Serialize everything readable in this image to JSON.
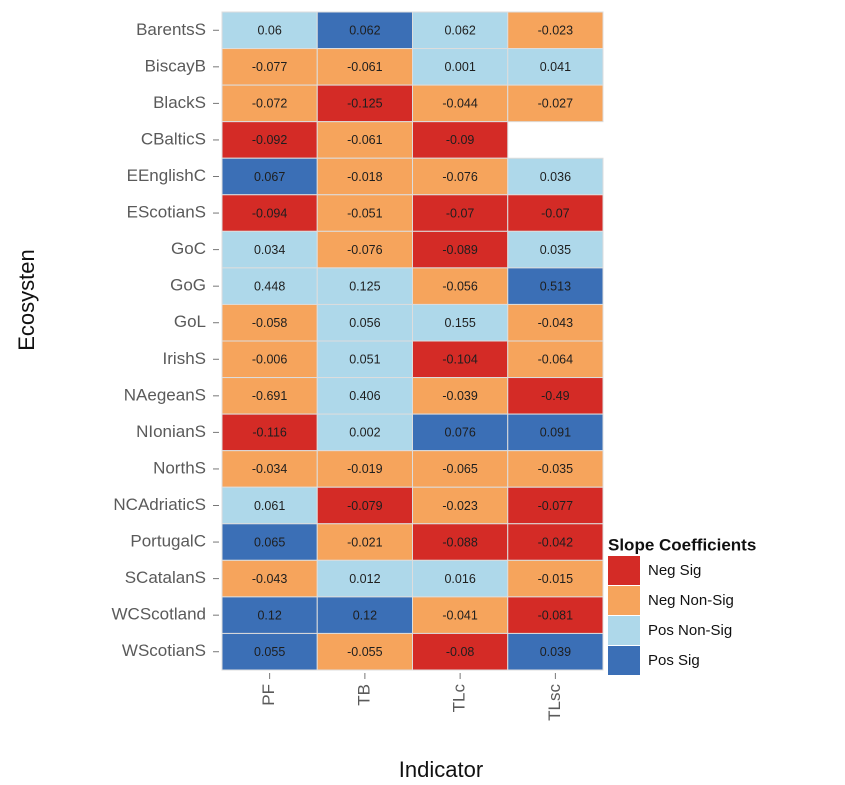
{
  "chart_data": {
    "type": "heatmap",
    "x_label": "Indicator",
    "y_label": "Ecosysten",
    "x_categories": [
      "PF",
      "TB",
      "TLc",
      "TLsc"
    ],
    "y_categories": [
      "BarentsS",
      "BiscayB",
      "BlackS",
      "CBalticS",
      "EEnglishC",
      "EScotianS",
      "GoC",
      "GoG",
      "GoL",
      "IrishS",
      "NAegeanS",
      "NIonianS",
      "NorthS",
      "NCAdriaticS",
      "PortugalC",
      "SCatalanS",
      "WCScotland",
      "WScotianS"
    ],
    "values": [
      [
        0.06,
        0.062,
        0.062,
        -0.023
      ],
      [
        -0.077,
        -0.061,
        0.001,
        0.041
      ],
      [
        -0.072,
        -0.125,
        -0.044,
        -0.027
      ],
      [
        -0.092,
        -0.061,
        -0.09,
        null
      ],
      [
        0.067,
        -0.018,
        -0.076,
        0.036
      ],
      [
        -0.094,
        -0.051,
        -0.07,
        -0.07
      ],
      [
        0.034,
        -0.076,
        -0.089,
        0.035
      ],
      [
        0.448,
        0.125,
        -0.056,
        0.513
      ],
      [
        -0.058,
        0.056,
        0.155,
        -0.043
      ],
      [
        -0.006,
        0.051,
        -0.104,
        -0.064
      ],
      [
        -0.691,
        0.406,
        -0.039,
        -0.49
      ],
      [
        -0.116,
        0.002,
        0.076,
        0.091
      ],
      [
        -0.034,
        -0.019,
        -0.065,
        -0.035
      ],
      [
        0.061,
        -0.079,
        -0.023,
        -0.077
      ],
      [
        0.065,
        -0.021,
        -0.088,
        -0.042
      ],
      [
        -0.043,
        0.012,
        0.016,
        -0.015
      ],
      [
        0.12,
        0.12,
        -0.041,
        -0.081
      ],
      [
        0.055,
        -0.055,
        -0.08,
        0.039
      ]
    ],
    "significance": [
      [
        "Pos Non-Sig",
        "Pos Sig",
        "Pos Non-Sig",
        "Neg Non-Sig"
      ],
      [
        "Neg Non-Sig",
        "Neg Non-Sig",
        "Pos Non-Sig",
        "Pos Non-Sig"
      ],
      [
        "Neg Non-Sig",
        "Neg Sig",
        "Neg Non-Sig",
        "Neg Non-Sig"
      ],
      [
        "Neg Sig",
        "Neg Non-Sig",
        "Neg Sig",
        null
      ],
      [
        "Pos Sig",
        "Neg Non-Sig",
        "Neg Non-Sig",
        "Pos Non-Sig"
      ],
      [
        "Neg Sig",
        "Neg Non-Sig",
        "Neg Sig",
        "Neg Sig"
      ],
      [
        "Pos Non-Sig",
        "Neg Non-Sig",
        "Neg Sig",
        "Pos Non-Sig"
      ],
      [
        "Pos Non-Sig",
        "Pos Non-Sig",
        "Neg Non-Sig",
        "Pos Sig"
      ],
      [
        "Neg Non-Sig",
        "Pos Non-Sig",
        "Pos Non-Sig",
        "Neg Non-Sig"
      ],
      [
        "Neg Non-Sig",
        "Pos Non-Sig",
        "Neg Sig",
        "Neg Non-Sig"
      ],
      [
        "Neg Non-Sig",
        "Pos Non-Sig",
        "Neg Non-Sig",
        "Neg Sig"
      ],
      [
        "Neg Sig",
        "Pos Non-Sig",
        "Pos Sig",
        "Pos Sig"
      ],
      [
        "Neg Non-Sig",
        "Neg Non-Sig",
        "Neg Non-Sig",
        "Neg Non-Sig"
      ],
      [
        "Pos Non-Sig",
        "Neg Sig",
        "Neg Non-Sig",
        "Neg Sig"
      ],
      [
        "Pos Sig",
        "Neg Non-Sig",
        "Neg Sig",
        "Neg Sig"
      ],
      [
        "Neg Non-Sig",
        "Pos Non-Sig",
        "Pos Non-Sig",
        "Neg Non-Sig"
      ],
      [
        "Pos Sig",
        "Pos Sig",
        "Neg Non-Sig",
        "Neg Sig"
      ],
      [
        "Pos Sig",
        "Neg Non-Sig",
        "Neg Sig",
        "Pos Sig"
      ]
    ],
    "legend_title": "Slope Coefficients",
    "legend": [
      {
        "name": "Neg Sig",
        "color": "#d42b26"
      },
      {
        "name": "Neg Non-Sig",
        "color": "#f6a45c"
      },
      {
        "name": "Pos Non-Sig",
        "color": "#aed8ea"
      },
      {
        "name": "Pos Sig",
        "color": "#3b6fb6"
      }
    ]
  }
}
